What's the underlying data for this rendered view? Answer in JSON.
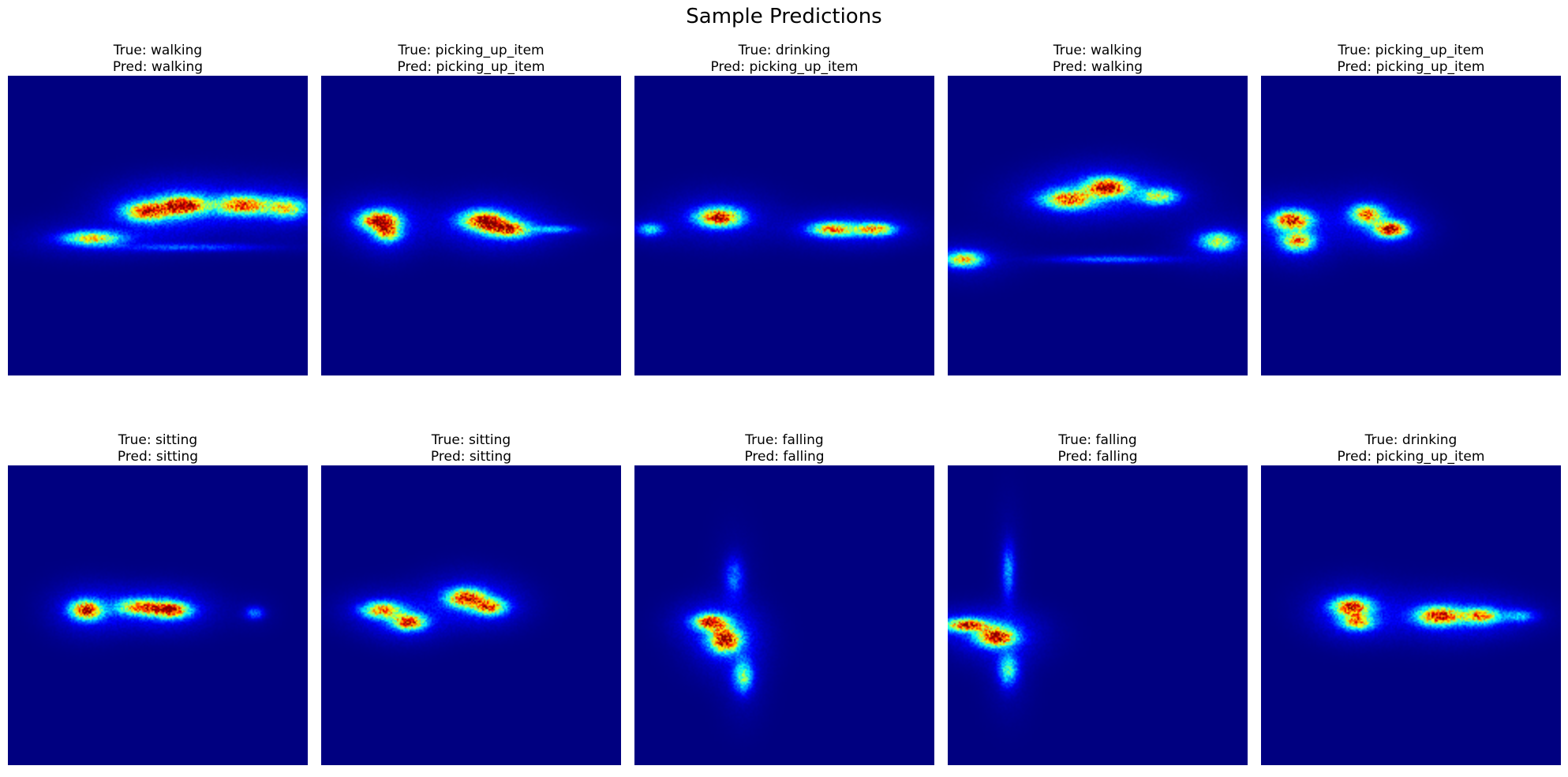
{
  "title": "Sample Predictions",
  "colormap": "jet",
  "colors": {
    "background_low": "#000080",
    "mid": "#00ffff",
    "high": "#ff0000"
  },
  "chart_data": {
    "type": "heatmap",
    "title": "Sample Predictions",
    "rows": 2,
    "cols": 5,
    "panels": [
      {
        "true_text": "True: walking",
        "pred_text": "Pred: walking"
      },
      {
        "true_text": "True: picking_up_item",
        "pred_text": "Pred: picking_up_item"
      },
      {
        "true_text": "True: drinking",
        "pred_text": "Pred: picking_up_item"
      },
      {
        "true_text": "True: walking",
        "pred_text": "Pred: walking"
      },
      {
        "true_text": "True: picking_up_item",
        "pred_text": "Pred: picking_up_item"
      },
      {
        "true_text": "True: sitting",
        "pred_text": "Pred: sitting"
      },
      {
        "true_text": "True: sitting",
        "pred_text": "Pred: sitting"
      },
      {
        "true_text": "True: falling",
        "pred_text": "Pred: falling"
      },
      {
        "true_text": "True: falling",
        "pred_text": "Pred: falling"
      },
      {
        "true_text": "True: drinking",
        "pred_text": "Pred: picking_up_item"
      }
    ]
  }
}
